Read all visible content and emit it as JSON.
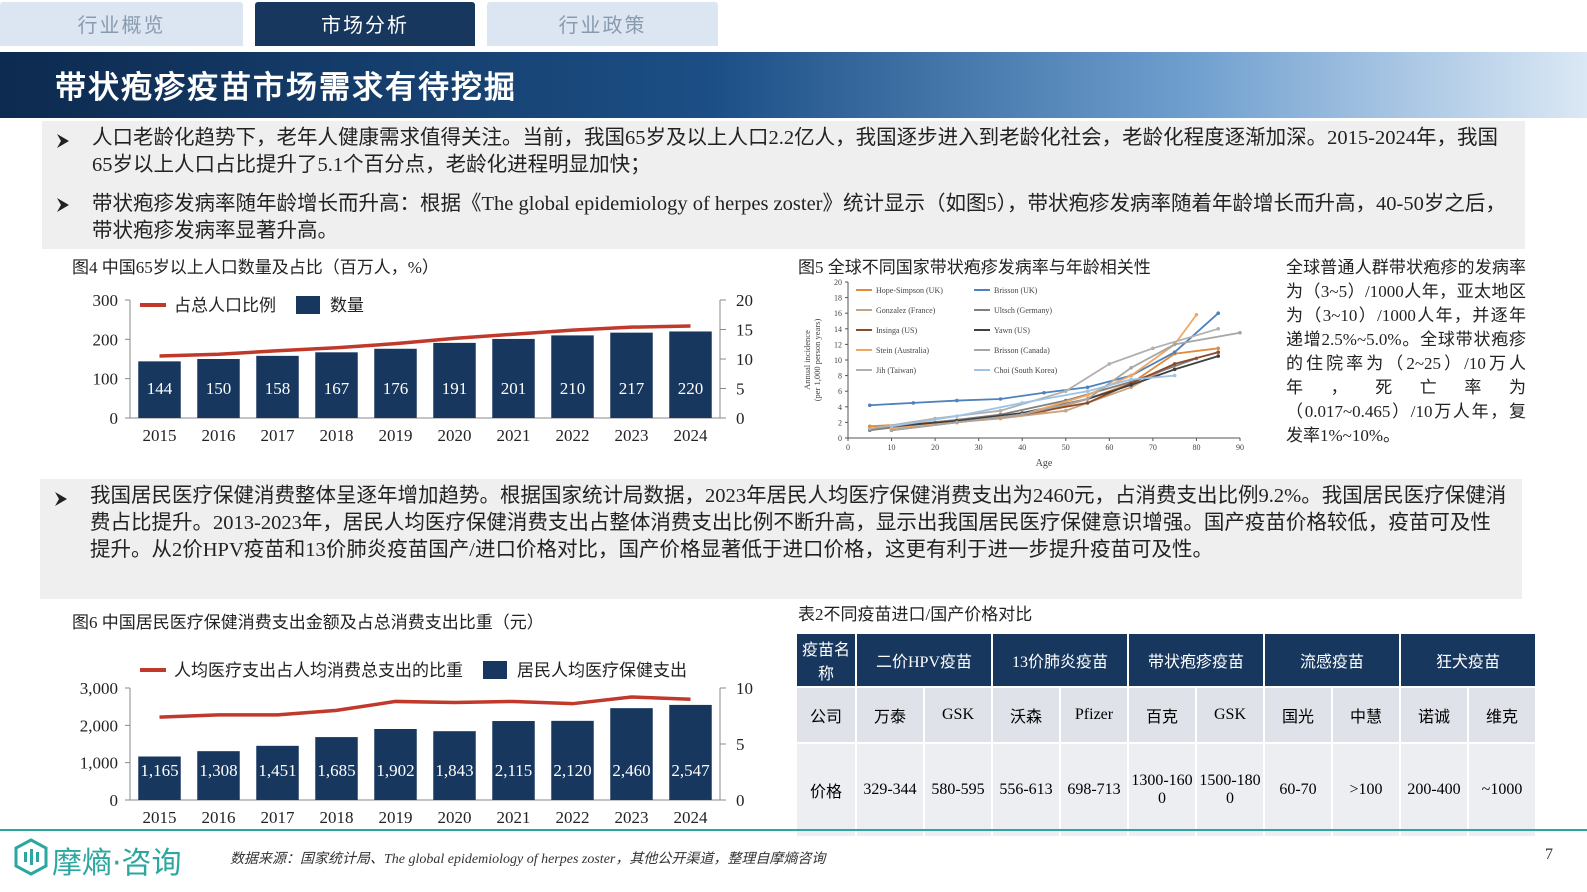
{
  "tabs": [
    "行业概览",
    "市场分析",
    "行业政策"
  ],
  "title": "带状疱疹疫苗市场需求有待挖掘",
  "bullets_top": [
    "人口老龄化趋势下，老年人健康需求值得关注。当前，我国65岁及以上人口2.2亿人，我国逐步进入到老龄化社会，老龄化程度逐渐加深。2015-2024年，我国65岁以上人口占比提升了5.1个百分点，老龄化进程明显加快；",
    "带状疱疹发病率随年龄增长而升高：根据《The global epidemiology of herpes zoster》统计显示（如图5），带状疱疹发病率随着年龄增长而升高，40-50岁之后，带状疱疹发病率显著升高。"
  ],
  "bullet_mid": "我国居民医疗保健消费整体呈逐年增加趋势。根据国家统计局数据，2023年居民人均医疗保健消费支出为2460元，占消费支出比例9.2%。我国居民医疗保健消费占比提升。2013-2023年，居民人均医疗保健消费支出占整体消费支出比例不断升高，显示出我国居民医疗保健意识增强。国产疫苗价格较低，疫苗可及性提升。从2价HPV疫苗和13价肺炎疫苗国产/进口价格对比，国产价格显著低于进口价格，这更有利于进一步提升疫苗可及性。",
  "side_note": "全球普通人群带状疱疹的发病率为（3~5）/1000人年，亚太地区为（3~10）/1000人年，并逐年递增2.5%~5.0%。全球带状疱疹的住院率为（2~25）/10万人年，死亡率为（0.017~0.465）/10万人年，复发率1%~10%。",
  "chart_data": [
    {
      "type": "combo",
      "title": "图4 中国65岁以上人口数量及占比（百万人，%）",
      "categories": [
        "2015",
        "2016",
        "2017",
        "2018",
        "2019",
        "2020",
        "2021",
        "2022",
        "2023",
        "2024"
      ],
      "series": [
        {
          "name": "占总人口比例",
          "color": "#c0392b",
          "kind": "line",
          "axis": "y2",
          "values": [
            10.5,
            10.8,
            11.4,
            11.9,
            12.6,
            13.5,
            14.2,
            14.9,
            15.4,
            15.6
          ]
        },
        {
          "name": "数量",
          "color": "#17375e",
          "kind": "bar",
          "values": [
            144,
            150,
            158,
            167,
            176,
            191,
            201,
            210,
            217,
            220
          ]
        }
      ],
      "ylim": [
        0,
        300
      ],
      "yticks": [
        0,
        100,
        200,
        300
      ],
      "y2lim": [
        0,
        20
      ],
      "y2ticks": [
        0,
        5,
        10,
        15,
        20
      ]
    },
    {
      "type": "line",
      "title": "图5 全球不同国家带状疱疹发病率与年龄相关性",
      "xlabel": "Age",
      "ylabel": [
        "Annual incidence",
        "(per 1,000 person years)"
      ],
      "xlim": [
        0,
        90
      ],
      "xticks": [
        0,
        10,
        20,
        30,
        40,
        50,
        60,
        70,
        80,
        90
      ],
      "ylim": [
        0,
        20
      ],
      "yticks": [
        0,
        2,
        4,
        6,
        8,
        10,
        12,
        14,
        16,
        18,
        20
      ],
      "series": [
        {
          "name": "Hope-Simpson (UK)",
          "color": "#e08a3c",
          "x": [
            5,
            15,
            25,
            35,
            45,
            55,
            65,
            75,
            85
          ],
          "values": [
            1.5,
            1.8,
            2.3,
            2.5,
            3.4,
            5.0,
            7.0,
            10.8,
            11.5
          ]
        },
        {
          "name": "Brisson (UK)",
          "color": "#4f81bd",
          "x": [
            5,
            15,
            25,
            35,
            45,
            55,
            65,
            75,
            85
          ],
          "values": [
            4.2,
            4.5,
            4.8,
            5.0,
            5.8,
            6.5,
            8.0,
            11.0,
            16.0
          ]
        },
        {
          "name": "Gonzalez (France)",
          "color": "#c9a27e",
          "x": [
            5,
            20,
            35,
            50,
            65,
            75
          ],
          "values": [
            1.2,
            1.8,
            2.5,
            3.5,
            6.5,
            9.5
          ]
        },
        {
          "name": "Ultsch (Germany)",
          "color": "#7f7f7f",
          "x": [
            5,
            20,
            35,
            50,
            65,
            80
          ],
          "values": [
            1.0,
            2.0,
            3.0,
            4.8,
            7.2,
            10.2
          ]
        },
        {
          "name": "Insinga (US)",
          "color": "#8b4a2b",
          "x": [
            10,
            25,
            40,
            55,
            65,
            75,
            85
          ],
          "values": [
            1.0,
            2.0,
            3.0,
            4.5,
            7.0,
            9.5,
            11.0
          ]
        },
        {
          "name": "Yawn (US)",
          "color": "#404040",
          "x": [
            10,
            25,
            40,
            55,
            65,
            75,
            85
          ],
          "values": [
            1.5,
            2.2,
            3.2,
            5.0,
            6.8,
            8.8,
            10.5
          ]
        },
        {
          "name": "Stein (Australia)",
          "color": "#f0a860",
          "x": [
            10,
            25,
            40,
            55,
            65,
            75,
            80
          ],
          "values": [
            1.2,
            2.0,
            3.0,
            5.5,
            8.0,
            12.0,
            15.8
          ]
        },
        {
          "name": "Brisson (Canada)",
          "color": "#a6a6a6",
          "x": [
            10,
            25,
            40,
            55,
            65,
            75,
            90
          ],
          "values": [
            1.0,
            2.0,
            3.0,
            5.0,
            9.0,
            12.0,
            13.5
          ]
        },
        {
          "name": "Jih (Taiwan)",
          "color": "#b0b0b0",
          "x": [
            5,
            20,
            35,
            50,
            60,
            70,
            85
          ],
          "values": [
            1.2,
            2.5,
            3.5,
            6.0,
            9.5,
            11.5,
            14.0
          ]
        },
        {
          "name": "Choi (South Korea)",
          "color": "#9dc3e6",
          "x": [
            10,
            25,
            40,
            55,
            65,
            75
          ],
          "values": [
            1.5,
            2.8,
            4.5,
            6.0,
            7.5,
            8.0
          ]
        }
      ]
    },
    {
      "type": "combo",
      "title": "图6 中国居民医疗保健消费支出金额及占总消费支出比重（元）",
      "categories": [
        "2015",
        "2016",
        "2017",
        "2018",
        "2019",
        "2020",
        "2021",
        "2022",
        "2023",
        "2024"
      ],
      "series": [
        {
          "name": "人均医疗支出占人均消费总支出的比重",
          "color": "#c0392b",
          "kind": "line",
          "axis": "y2",
          "values": [
            7.4,
            7.6,
            7.6,
            8.0,
            8.8,
            8.7,
            8.8,
            8.6,
            9.2,
            9.0
          ]
        },
        {
          "name": "居民人均医疗保健支出",
          "color": "#17375e",
          "kind": "bar",
          "values": [
            1165,
            1308,
            1451,
            1685,
            1902,
            1843,
            2115,
            2120,
            2460,
            2547
          ],
          "value_labels": [
            "1,165",
            "1,308",
            "1,451",
            "1,685",
            "1,902",
            "1,843",
            "2,115",
            "2,120",
            "2,460",
            "2,547"
          ]
        }
      ],
      "ylim": [
        0,
        3000
      ],
      "yticks": [
        0,
        {
          "value": 1000,
          "label": "1,000"
        },
        {
          "value": 2000,
          "label": "2,000"
        },
        {
          "value": 3000,
          "label": "3,000"
        }
      ],
      "y2lim": [
        0,
        10
      ],
      "y2ticks": [
        0,
        5,
        10
      ]
    }
  ],
  "table": {
    "title": "表2不同疫苗进口/国产价格对比",
    "header": [
      "疫苗名称",
      "二价HPV疫苗",
      "13价肺炎疫苗",
      "带状疱疹疫苗",
      "流感疫苗",
      "狂犬疫苗"
    ],
    "rows": [
      [
        "公司",
        "万泰",
        "GSK",
        "沃森",
        "Pfizer",
        "百克",
        "GSK",
        "国光",
        "中慧",
        "诺诚",
        "维克"
      ],
      [
        "价格",
        "329-344",
        "580-595",
        "556-613",
        "698-713",
        "1300-1600",
        "1500-1800",
        "60-70",
        ">100",
        "200-400",
        "~1000"
      ]
    ]
  },
  "logo": "摩熵·咨询",
  "source": "数据来源：国家统计局、The global epidemiology of herpes zoster，其他公开渠道，整理自摩熵咨询",
  "page": "7"
}
